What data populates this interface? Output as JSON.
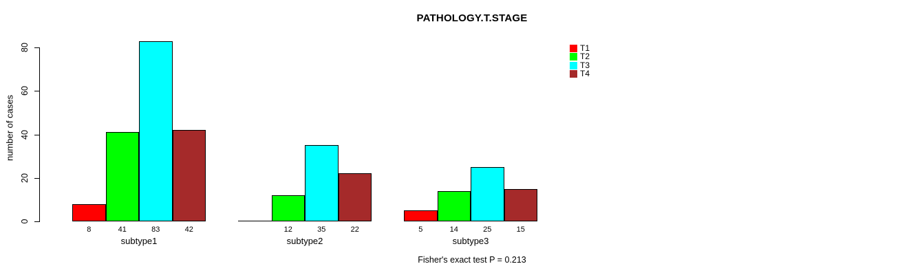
{
  "chart_data": {
    "type": "bar",
    "title": "PATHOLOGY.T.STAGE",
    "ylabel": "number of cases",
    "xlabel": "",
    "ylim": [
      0,
      88
    ],
    "yticks": [
      0,
      20,
      40,
      60,
      80
    ],
    "grid": false,
    "legend_position": "top-right",
    "categories": [
      "subtype1",
      "subtype2",
      "subtype3"
    ],
    "series": [
      {
        "name": "T1",
        "color": "#FF0000",
        "values": [
          8,
          0,
          5
        ]
      },
      {
        "name": "T2",
        "color": "#00FF00",
        "values": [
          41,
          12,
          14
        ]
      },
      {
        "name": "T3",
        "color": "#00FFFF",
        "values": [
          83,
          35,
          25
        ]
      },
      {
        "name": "T4",
        "color": "#A52A2A",
        "values": [
          42,
          22,
          15
        ]
      }
    ],
    "bar_value_labels": [
      [
        "8",
        "41",
        "83",
        "42"
      ],
      [
        "",
        "12",
        "35",
        "22"
      ],
      [
        "5",
        "14",
        "25",
        "15"
      ]
    ],
    "annotation": "Fisher's exact test P = 0.213",
    "axis_color": "#000000",
    "background_color": "#FFFFFF"
  }
}
